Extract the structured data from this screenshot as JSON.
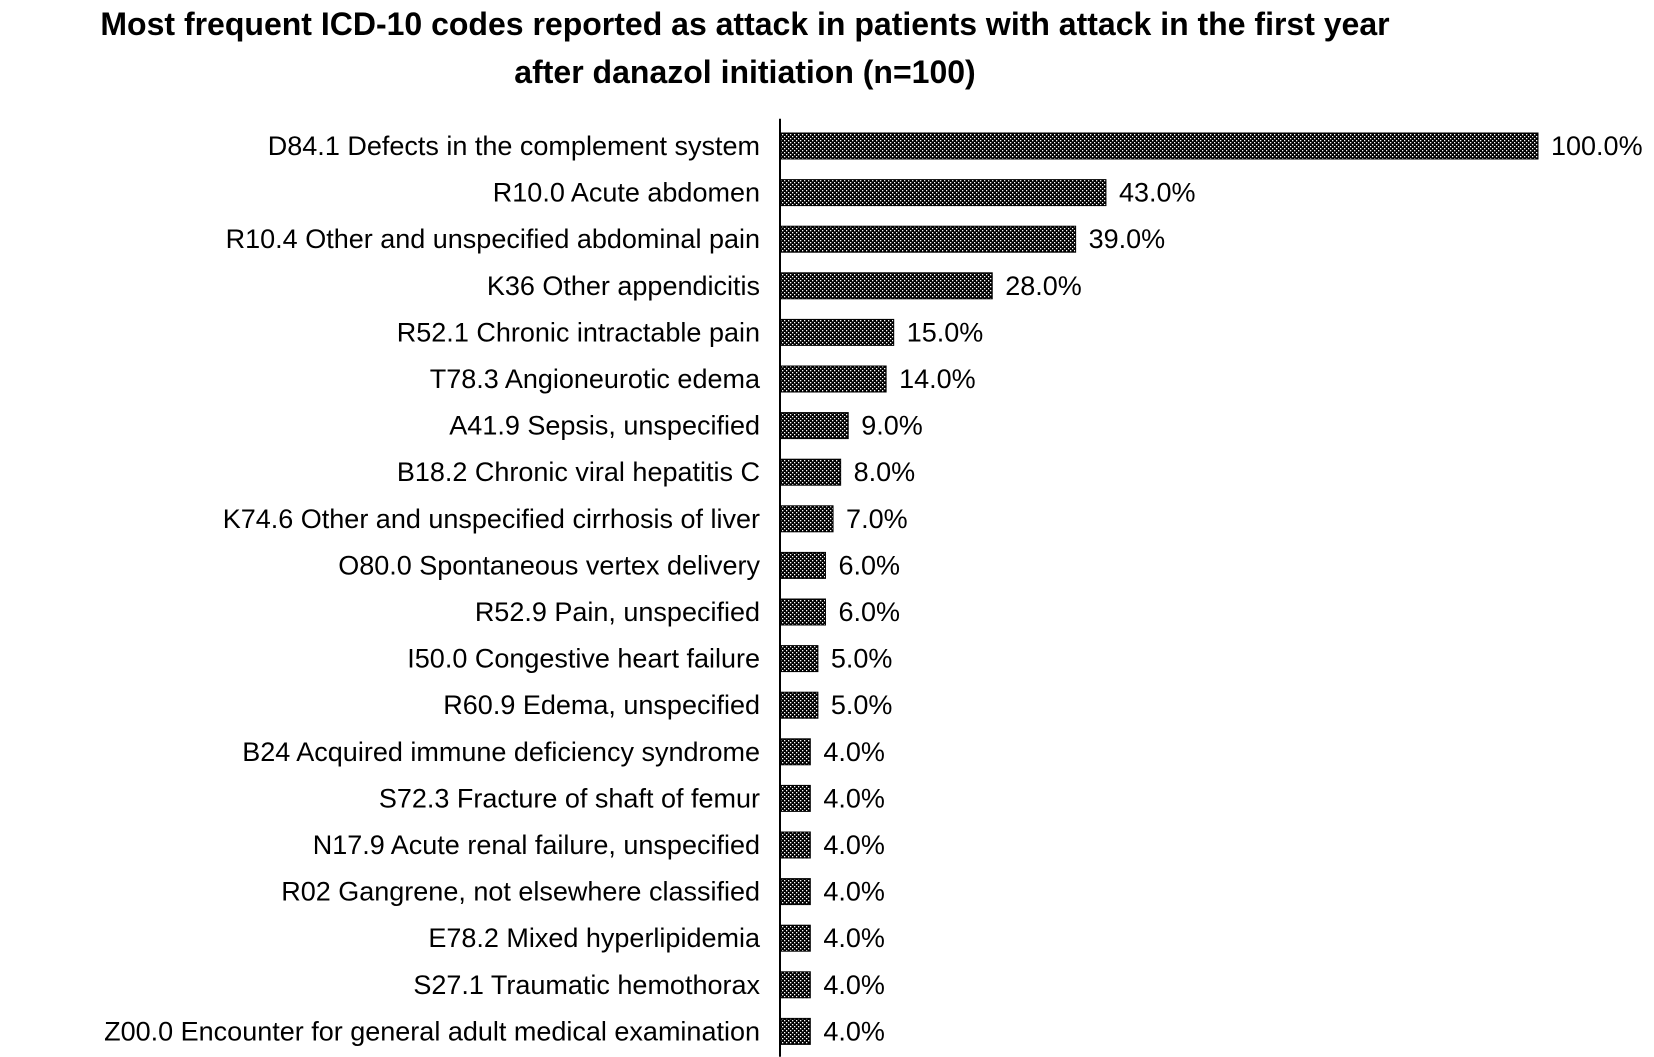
{
  "chart_data": {
    "type": "bar",
    "orientation": "horizontal",
    "title_lines": [
      "Most frequent ICD-10 codes reported as attack in patients with attack in the first year",
      "after danazol initiation (n=100)"
    ],
    "xlabel": "",
    "ylabel": "",
    "xlim": [
      0,
      100
    ],
    "grid": false,
    "legend": "none",
    "colors": {
      "bar_fill": "#000000",
      "bar_pattern_light": "#ffffff",
      "axis": "#000000",
      "text": "#000000"
    },
    "categories": [
      "D84.1 Defects in the complement system",
      "R10.0 Acute abdomen",
      "R10.4 Other and unspecified abdominal pain",
      "K36 Other appendicitis",
      "R52.1 Chronic intractable pain",
      "T78.3 Angioneurotic edema",
      "A41.9 Sepsis, unspecified",
      "B18.2 Chronic viral hepatitis C",
      "K74.6 Other and unspecified cirrhosis of liver",
      "O80.0 Spontaneous vertex delivery",
      "R52.9 Pain, unspecified",
      "I50.0 Congestive heart failure",
      "R60.9 Edema, unspecified",
      "B24 Acquired immune deficiency syndrome",
      "S72.3 Fracture of shaft of femur",
      "N17.9 Acute renal failure, unspecified",
      "R02 Gangrene, not elsewhere classified",
      "E78.2 Mixed hyperlipidemia",
      "S27.1 Traumatic hemothorax",
      "Z00.0 Encounter for general adult medical examination"
    ],
    "values": [
      100.0,
      43.0,
      39.0,
      28.0,
      15.0,
      14.0,
      9.0,
      8.0,
      7.0,
      6.0,
      6.0,
      5.0,
      5.0,
      4.0,
      4.0,
      4.0,
      4.0,
      4.0,
      4.0,
      4.0
    ],
    "value_labels": [
      "100.0%",
      "43.0%",
      "39.0%",
      "28.0%",
      "15.0%",
      "14.0%",
      "9.0%",
      "8.0%",
      "7.0%",
      "6.0%",
      "6.0%",
      "5.0%",
      "5.0%",
      "4.0%",
      "4.0%",
      "4.0%",
      "4.0%",
      "4.0%",
      "4.0%",
      "4.0%"
    ]
  }
}
